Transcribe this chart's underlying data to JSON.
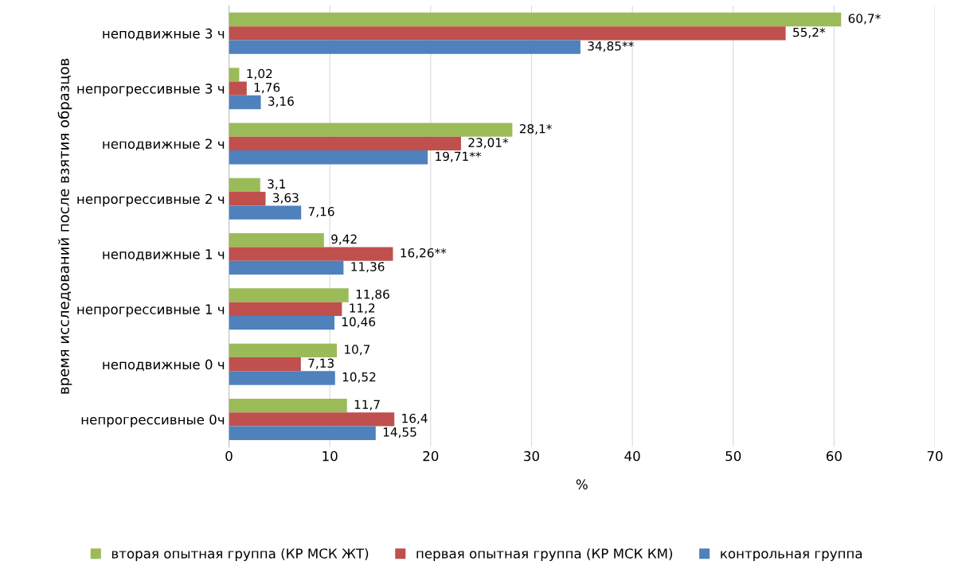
{
  "chart_data": {
    "type": "bar",
    "orientation": "horizontal",
    "xlabel": "%",
    "ylabel": "время исследований после взятия образцов",
    "categories": [
      "неподвижные 3 ч",
      "непрогрессивные 3 ч",
      "неподвижные 2 ч",
      "непрогрессивные 2 ч",
      "неподвижные 1 ч",
      "непрогрессивные 1 ч",
      "неподвижные 0 ч",
      "непрогрессивные 0ч"
    ],
    "series": [
      {
        "name": "вторая опытная группа (КР МСК ЖТ)",
        "color": "#9bbb59",
        "values": [
          60.7,
          1.02,
          28.1,
          3.1,
          9.42,
          11.86,
          10.7,
          11.7
        ],
        "value_labels": [
          "60,7*",
          "1,02",
          "28,1*",
          "3,1",
          "9,42",
          "11,86",
          "10,7",
          "11,7"
        ]
      },
      {
        "name": "первая опытная группа (КР МСК КМ)",
        "color": "#c0504d",
        "values": [
          55.2,
          1.76,
          23.01,
          3.63,
          16.26,
          11.2,
          7.13,
          16.4
        ],
        "value_labels": [
          "55,2*",
          "1,76",
          "23,01*",
          "3,63",
          "16,26**",
          "11,2",
          "7,13",
          "16,4"
        ]
      },
      {
        "name": "контрольная группа",
        "color": "#4f81bd",
        "values": [
          34.85,
          3.16,
          19.71,
          7.16,
          11.36,
          10.46,
          10.52,
          14.55
        ],
        "value_labels": [
          "34,85**",
          "3,16",
          "19,71**",
          "7,16",
          "11,36",
          "10,46",
          "10,52",
          "14,55"
        ]
      }
    ],
    "xlim": [
      0,
      70
    ],
    "xticks": [
      0,
      10,
      20,
      30,
      40,
      50,
      60,
      70
    ],
    "grid": "x",
    "legend": "bottom"
  }
}
